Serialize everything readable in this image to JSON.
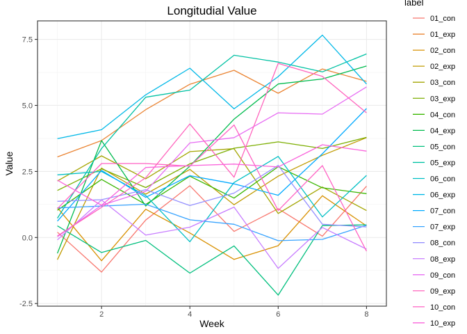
{
  "chart_data": {
    "type": "line",
    "title": "Longitudial Value",
    "xlabel": "Week",
    "ylabel": "Value",
    "xlim": [
      0.55,
      8.45
    ],
    "ylim": [
      -2.6,
      8.2
    ],
    "xticks": [
      2,
      4,
      6,
      8
    ],
    "xtick_labels": [
      "2",
      "4",
      "6",
      "8"
    ],
    "yticks": [
      -2.5,
      0.0,
      2.5,
      5.0,
      7.5
    ],
    "ytick_labels": [
      "-2.5",
      "0.0",
      "2.5",
      "5.0",
      "7.5"
    ],
    "grid": true,
    "legend_title": "label",
    "legend_position": "right",
    "x": [
      1,
      2,
      3,
      4,
      5,
      6,
      7,
      8
    ],
    "series": [
      {
        "name": "01_con",
        "color": "#F8766D",
        "values": [
          0.2,
          -1.31,
          0.66,
          1.96,
          0.23,
          1.09,
          0.05,
          1.94
        ]
      },
      {
        "name": "01_exp",
        "color": "#EA8331",
        "values": [
          3.05,
          3.67,
          4.84,
          5.8,
          6.33,
          5.46,
          6.38,
          5.91
        ]
      },
      {
        "name": "02_con",
        "color": "#D89000",
        "values": [
          1.13,
          -0.88,
          1.07,
          0.17,
          -0.83,
          -0.31,
          1.58,
          0.44
        ]
      },
      {
        "name": "02_exp",
        "color": "#C09B00",
        "values": [
          -0.84,
          2.63,
          1.64,
          2.58,
          1.24,
          2.32,
          3.11,
          3.78
        ]
      },
      {
        "name": "03_con",
        "color": "#A3A500",
        "values": [
          2.14,
          3.09,
          2.22,
          3.25,
          3.36,
          0.91,
          1.91,
          1.02
        ]
      },
      {
        "name": "03_exp",
        "color": "#7CAE00",
        "values": [
          1.78,
          2.6,
          1.89,
          2.79,
          3.38,
          3.62,
          3.37,
          3.79
        ]
      },
      {
        "name": "04_con",
        "color": "#39B600",
        "values": [
          1.03,
          2.2,
          1.25,
          2.32,
          1.49,
          2.68,
          1.88,
          1.66
        ]
      },
      {
        "name": "04_exp",
        "color": "#00BB4E",
        "values": [
          -0.6,
          3.67,
          1.19,
          2.7,
          4.48,
          5.81,
          6.0,
          6.49
        ]
      },
      {
        "name": "05_con",
        "color": "#00BF7D",
        "values": [
          0.44,
          -0.57,
          -0.11,
          -1.35,
          -0.32,
          -2.18,
          0.45,
          0.48
        ]
      },
      {
        "name": "05_exp",
        "color": "#00C1A3",
        "values": [
          0.73,
          3.37,
          5.31,
          5.58,
          6.9,
          6.64,
          6.27,
          6.95
        ]
      },
      {
        "name": "06_con",
        "color": "#00BFC4",
        "values": [
          2.37,
          2.5,
          1.59,
          -0.16,
          2.08,
          3.07,
          0.78,
          2.35
        ]
      },
      {
        "name": "06_exp",
        "color": "#00B8E7",
        "values": [
          3.74,
          4.08,
          5.4,
          6.41,
          4.87,
          6.09,
          7.66,
          5.81
        ]
      },
      {
        "name": "07_con",
        "color": "#00A9FF",
        "values": [
          0.62,
          2.54,
          1.52,
          2.34,
          2.03,
          1.6,
          3.17,
          4.88
        ]
      },
      {
        "name": "07_exp",
        "color": "#35A2FF",
        "values": [
          1.12,
          1.19,
          1.26,
          0.67,
          0.5,
          -0.12,
          -0.07,
          0.46
        ]
      },
      {
        "name": "08_con",
        "color": "#9590FF",
        "values": [
          1.37,
          1.43,
          1.81,
          1.21,
          1.68,
          2.73,
          0.5,
          0.4
        ]
      },
      {
        "name": "08_exp",
        "color": "#C77CFF",
        "values": [
          -0.09,
          1.42,
          0.09,
          0.39,
          1.15,
          -1.17,
          0.38,
          -0.44
        ]
      },
      {
        "name": "09_con",
        "color": "#E76BF3",
        "values": [
          0.03,
          1.22,
          1.75,
          3.58,
          3.78,
          4.72,
          4.67,
          5.7
        ]
      },
      {
        "name": "09_exp",
        "color": "#FF62BC",
        "values": [
          0.06,
          1.14,
          2.26,
          4.3,
          2.28,
          6.59,
          6.1,
          4.72
        ]
      },
      {
        "name": "10_con",
        "color": "#FF61C3",
        "values": [
          1.09,
          2.8,
          2.8,
          2.7,
          4.26,
          1.02,
          2.72,
          -0.52
        ]
      },
      {
        "name": "10_exp",
        "color": "#FA62DB",
        "values": [
          2.17,
          1.22,
          2.65,
          2.72,
          2.78,
          2.67,
          3.51,
          3.27
        ]
      }
    ]
  }
}
